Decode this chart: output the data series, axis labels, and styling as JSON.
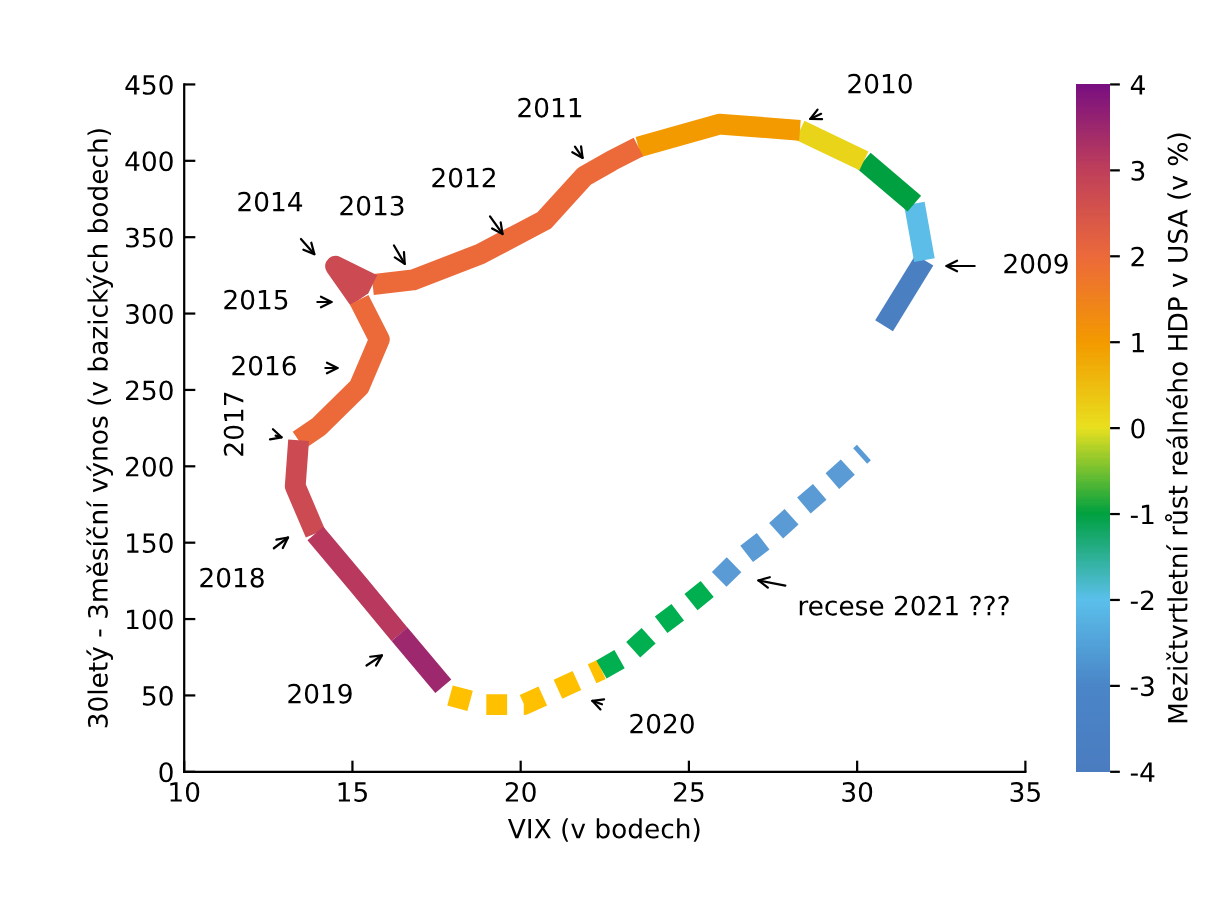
{
  "chart_data": {
    "type": "line",
    "xlabel": "VIX (v bodech)",
    "ylabel": "30letý - 3měsíční výnos (v bazických bodech)",
    "clabel": "Mezičtvrtletní růst reálného HDP v USA (v %)",
    "xlim": [
      10,
      35
    ],
    "xticks": [
      10,
      15,
      20,
      25,
      30,
      35
    ],
    "ylim": [
      0,
      450
    ],
    "yticks": [
      0,
      50,
      100,
      150,
      200,
      250,
      300,
      350,
      400,
      450
    ],
    "clim": [
      -4,
      4
    ],
    "cticks": [
      -4,
      -3,
      -2,
      -1,
      0,
      1,
      2,
      3,
      4
    ],
    "grid": false,
    "series": [
      {
        "line_style": "solid",
        "color": "#4a7fc2",
        "x": [
          30.8,
          32.0
        ],
        "values": [
          292,
          335
        ]
      },
      {
        "line_style": "solid",
        "color": "#5bbde8",
        "x": [
          32.0,
          31.7
        ],
        "values": [
          335,
          372
        ]
      },
      {
        "line_style": "solid",
        "color": "#00a040",
        "x": [
          31.7,
          30.2
        ],
        "values": [
          372,
          400
        ]
      },
      {
        "line_style": "solid",
        "color": "#ead41a",
        "x": [
          30.2,
          28.3
        ],
        "values": [
          400,
          420
        ]
      },
      {
        "line_style": "solid",
        "color": "#f39a00",
        "x": [
          28.3,
          25.9,
          23.5
        ],
        "values": [
          420,
          424,
          409
        ]
      },
      {
        "line_style": "solid",
        "color": "#ec6a3a",
        "x": [
          23.5,
          22.7,
          21.9,
          20.7,
          18.8,
          16.8,
          15.6
        ],
        "values": [
          409,
          400,
          390,
          361,
          339,
          322,
          319
        ]
      },
      {
        "line_style": "solid",
        "color": "#cc4a52",
        "x": [
          15.6,
          14.5,
          15.2
        ],
        "values": [
          319,
          331,
          309
        ]
      },
      {
        "line_style": "solid",
        "color": "#ec6a3a",
        "x": [
          15.2,
          15.8,
          15.2,
          14.0,
          13.4
        ],
        "values": [
          309,
          283,
          252,
          226,
          217
        ]
      },
      {
        "line_style": "solid",
        "color": "#cc4a52",
        "x": [
          13.4,
          13.3,
          13.9
        ],
        "values": [
          217,
          187,
          156
        ]
      },
      {
        "line_style": "solid",
        "color": "#b8385e",
        "x": [
          13.9,
          15.2,
          16.4
        ],
        "values": [
          156,
          122,
          90
        ]
      },
      {
        "line_style": "solid",
        "color": "#9d286d",
        "x": [
          16.4,
          17.7
        ],
        "values": [
          90,
          56
        ]
      },
      {
        "line_style": "dashed",
        "color": "#ffc000",
        "x": [
          17.9,
          18.9,
          20.1,
          21.3,
          22.4
        ],
        "values": [
          50,
          44,
          44,
          56,
          67
        ]
      },
      {
        "line_style": "dashed",
        "color": "#00b050",
        "x": [
          22.4,
          23.2,
          24.1,
          25.0,
          25.9
        ],
        "values": [
          67,
          77,
          95,
          110,
          126
        ]
      },
      {
        "line_style": "dashed",
        "color": "#5b9bd5",
        "x": [
          25.9,
          26.5,
          27.5,
          28.4,
          29.3,
          30.2
        ],
        "values": [
          126,
          139,
          156,
          174,
          191,
          209
        ]
      }
    ],
    "annotations": [
      "2009",
      "2010",
      "2011",
      "2012",
      "2013",
      "2014",
      "2015",
      "2016",
      "2017",
      "2018",
      "2019",
      "2020",
      "recese 2021 ???"
    ]
  }
}
